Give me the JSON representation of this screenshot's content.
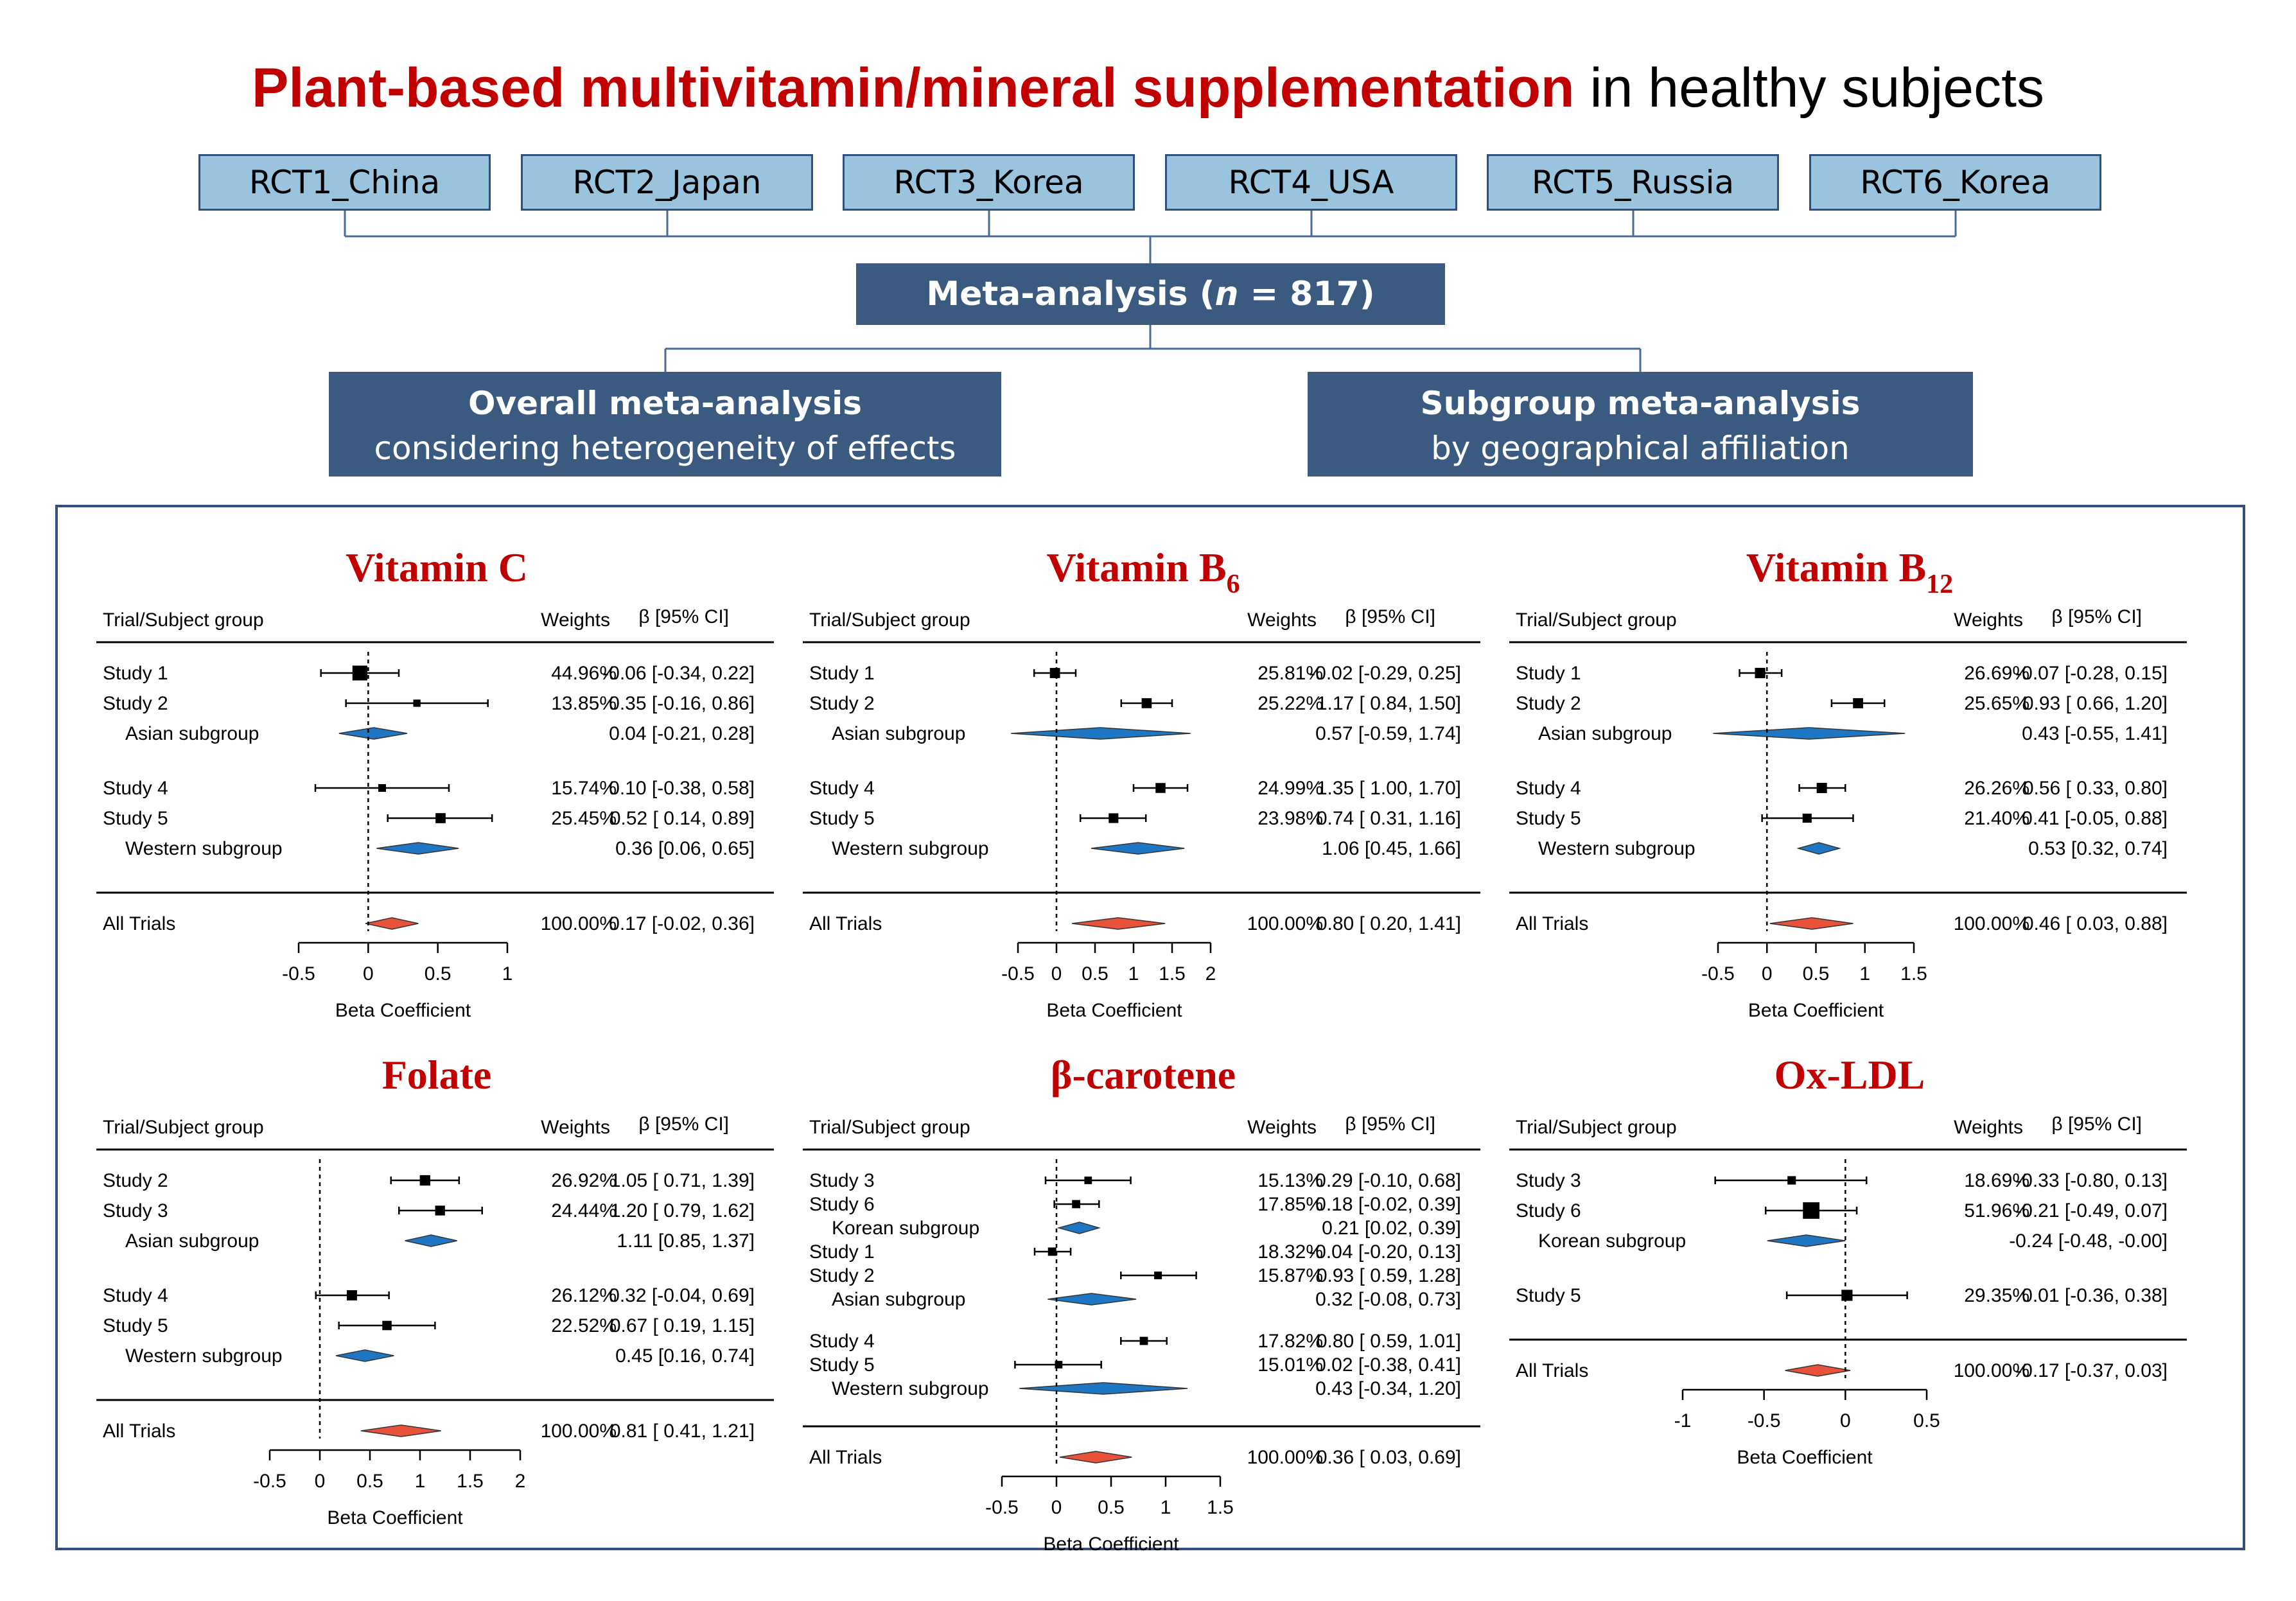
{
  "header": {
    "title_bold": "Plant-based multivitamin/mineral supplementation",
    "title_rest": " in healthy subjects"
  },
  "flow": {
    "rcts": [
      "RCT1_China",
      "RCT2_Japan",
      "RCT3_Korea",
      "RCT4_USA",
      "RCT5_Russia",
      "RCT6_Korea"
    ],
    "meta_prefix": "Meta-analysis (",
    "meta_n": "n",
    "meta_suffix": " = 817)",
    "overall_title": "Overall meta-analysis",
    "overall_sub": "considering heterogeneity of effects",
    "subgroup_title": "Subgroup meta-analysis",
    "subgroup_sub": "by geographical affiliation",
    "colors": {
      "rct_fill": "#9ac3de",
      "navy": "#3a5a80",
      "title_red": "#c00000"
    }
  },
  "common": {
    "col_trial": "Trial/Subject group",
    "col_weights": "Weights",
    "col_ci": "β [95% CI]",
    "xlabel": "Beta Coefficient",
    "colors": {
      "study": "#000000",
      "subgroup_diamond": "#1f77c4",
      "overall_diamond": "#e8513a"
    }
  },
  "chart_data": [
    {
      "type": "forest",
      "id": "vitc",
      "title_base": "Vitamin C",
      "title_sub": "",
      "xlim": [
        -0.5,
        1
      ],
      "ticks": [
        -0.5,
        0,
        0.5,
        1
      ],
      "tick_labels": [
        "-0.5",
        "0",
        "0.5",
        "1"
      ],
      "rows": [
        {
          "kind": "study",
          "label": "Study 1",
          "est": -0.06,
          "lo": -0.34,
          "hi": 0.22,
          "weight": "44.96%",
          "ci": "-0.06 [-0.34, 0.22]"
        },
        {
          "kind": "study",
          "label": "Study 2",
          "est": 0.35,
          "lo": -0.16,
          "hi": 0.86,
          "weight": "13.85%",
          "ci": "0.35 [-0.16, 0.86]"
        },
        {
          "kind": "subgroup",
          "label": "Asian subgroup",
          "est": 0.04,
          "lo": -0.21,
          "hi": 0.28,
          "weight": "",
          "ci": "0.04 [-0.21, 0.28]"
        },
        {
          "kind": "gap"
        },
        {
          "kind": "study",
          "label": "Study 4",
          "est": 0.1,
          "lo": -0.38,
          "hi": 0.58,
          "weight": "15.74%",
          "ci": "0.10 [-0.38, 0.58]"
        },
        {
          "kind": "study",
          "label": "Study 5",
          "est": 0.52,
          "lo": 0.14,
          "hi": 0.89,
          "weight": "25.45%",
          "ci": "0.52 [ 0.14, 0.89]"
        },
        {
          "kind": "subgroup",
          "label": "Western subgroup",
          "est": 0.36,
          "lo": 0.06,
          "hi": 0.65,
          "weight": "",
          "ci": "0.36 [0.06, 0.65]"
        },
        {
          "kind": "overall",
          "label": "All Trials",
          "est": 0.17,
          "lo": -0.02,
          "hi": 0.36,
          "weight": "100.00%",
          "ci": "0.17 [-0.02, 0.36]"
        }
      ]
    },
    {
      "type": "forest",
      "id": "vitb6",
      "title_base": "Vitamin B",
      "title_sub": "6",
      "xlim": [
        -0.5,
        2
      ],
      "ticks": [
        -0.5,
        0,
        0.5,
        1,
        1.5,
        2
      ],
      "tick_labels": [
        "-0.5",
        "0",
        "0.5",
        "1",
        "1.5",
        "2"
      ],
      "rows": [
        {
          "kind": "study",
          "label": "Study 1",
          "est": -0.02,
          "lo": -0.29,
          "hi": 0.25,
          "weight": "25.81%",
          "ci": "-0.02 [-0.29, 0.25]"
        },
        {
          "kind": "study",
          "label": "Study 2",
          "est": 1.17,
          "lo": 0.84,
          "hi": 1.5,
          "weight": "25.22%",
          "ci": "1.17 [ 0.84, 1.50]"
        },
        {
          "kind": "subgroup",
          "label": "Asian subgroup",
          "est": 0.57,
          "lo": -0.59,
          "hi": 1.74,
          "weight": "",
          "ci": "0.57 [-0.59, 1.74]"
        },
        {
          "kind": "gap"
        },
        {
          "kind": "study",
          "label": "Study 4",
          "est": 1.35,
          "lo": 1.0,
          "hi": 1.7,
          "weight": "24.99%",
          "ci": "1.35 [ 1.00, 1.70]"
        },
        {
          "kind": "study",
          "label": "Study 5",
          "est": 0.74,
          "lo": 0.31,
          "hi": 1.16,
          "weight": "23.98%",
          "ci": "0.74 [ 0.31, 1.16]"
        },
        {
          "kind": "subgroup",
          "label": "Western subgroup",
          "est": 1.06,
          "lo": 0.45,
          "hi": 1.66,
          "weight": "",
          "ci": "1.06 [0.45, 1.66]"
        },
        {
          "kind": "overall",
          "label": "All Trials",
          "est": 0.8,
          "lo": 0.2,
          "hi": 1.41,
          "weight": "100.00%",
          "ci": "0.80 [ 0.20, 1.41]"
        }
      ]
    },
    {
      "type": "forest",
      "id": "vitb12",
      "title_base": "Vitamin B",
      "title_sub": "12",
      "xlim": [
        -0.5,
        1.5
      ],
      "ticks": [
        -0.5,
        0,
        0.5,
        1,
        1.5
      ],
      "tick_labels": [
        "-0.5",
        "0",
        "0.5",
        "1",
        "1.5"
      ],
      "rows": [
        {
          "kind": "study",
          "label": "Study 1",
          "est": -0.07,
          "lo": -0.28,
          "hi": 0.15,
          "weight": "26.69%",
          "ci": "-0.07 [-0.28, 0.15]"
        },
        {
          "kind": "study",
          "label": "Study 2",
          "est": 0.93,
          "lo": 0.66,
          "hi": 1.2,
          "weight": "25.65%",
          "ci": "0.93 [ 0.66, 1.20]"
        },
        {
          "kind": "subgroup",
          "label": "Asian subgroup",
          "est": 0.43,
          "lo": -0.55,
          "hi": 1.41,
          "weight": "",
          "ci": "0.43 [-0.55, 1.41]"
        },
        {
          "kind": "gap"
        },
        {
          "kind": "study",
          "label": "Study 4",
          "est": 0.56,
          "lo": 0.33,
          "hi": 0.8,
          "weight": "26.26%",
          "ci": "0.56 [ 0.33, 0.80]"
        },
        {
          "kind": "study",
          "label": "Study 5",
          "est": 0.41,
          "lo": -0.05,
          "hi": 0.88,
          "weight": "21.40%",
          "ci": "0.41 [-0.05, 0.88]"
        },
        {
          "kind": "subgroup",
          "label": "Western subgroup",
          "est": 0.53,
          "lo": 0.32,
          "hi": 0.74,
          "weight": "",
          "ci": "0.53 [0.32, 0.74]"
        },
        {
          "kind": "overall",
          "label": "All Trials",
          "est": 0.46,
          "lo": 0.03,
          "hi": 0.88,
          "weight": "100.00%",
          "ci": "0.46 [ 0.03, 0.88]"
        }
      ]
    },
    {
      "type": "forest",
      "id": "folate",
      "title_base": "Folate",
      "title_sub": "",
      "xlim": [
        -0.5,
        2
      ],
      "ticks": [
        -0.5,
        0,
        0.5,
        1,
        1.5,
        2
      ],
      "tick_labels": [
        "-0.5",
        "0",
        "0.5",
        "1",
        "1.5",
        "2"
      ],
      "rows": [
        {
          "kind": "study",
          "label": "Study 2",
          "est": 1.05,
          "lo": 0.71,
          "hi": 1.39,
          "weight": "26.92%",
          "ci": "1.05 [ 0.71, 1.39]"
        },
        {
          "kind": "study",
          "label": "Study 3",
          "est": 1.2,
          "lo": 0.79,
          "hi": 1.62,
          "weight": "24.44%",
          "ci": "1.20 [ 0.79, 1.62]"
        },
        {
          "kind": "subgroup",
          "label": "Asian subgroup",
          "est": 1.11,
          "lo": 0.85,
          "hi": 1.37,
          "weight": "",
          "ci": "1.11 [0.85, 1.37]"
        },
        {
          "kind": "gap"
        },
        {
          "kind": "study",
          "label": "Study 4",
          "est": 0.32,
          "lo": -0.04,
          "hi": 0.69,
          "weight": "26.12%",
          "ci": "0.32 [-0.04, 0.69]"
        },
        {
          "kind": "study",
          "label": "Study 5",
          "est": 0.67,
          "lo": 0.19,
          "hi": 1.15,
          "weight": "22.52%",
          "ci": "0.67 [ 0.19, 1.15]"
        },
        {
          "kind": "subgroup",
          "label": "Western subgroup",
          "est": 0.45,
          "lo": 0.16,
          "hi": 0.74,
          "weight": "",
          "ci": "0.45 [0.16, 0.74]"
        },
        {
          "kind": "overall",
          "label": "All Trials",
          "est": 0.81,
          "lo": 0.41,
          "hi": 1.21,
          "weight": "100.00%",
          "ci": "0.81 [ 0.41, 1.21]"
        }
      ]
    },
    {
      "type": "forest",
      "id": "bcar",
      "title_base": "β-carotene",
      "title_sub": "",
      "xlim": [
        -0.5,
        1.5
      ],
      "ticks": [
        -0.5,
        0,
        0.5,
        1,
        1.5
      ],
      "tick_labels": [
        "-0.5",
        "0",
        "0.5",
        "1",
        "1.5"
      ],
      "rows": [
        {
          "kind": "study",
          "label": "Study 3",
          "est": 0.29,
          "lo": -0.1,
          "hi": 0.68,
          "weight": "15.13%",
          "ci": "0.29 [-0.10, 0.68]"
        },
        {
          "kind": "study",
          "label": "Study 6",
          "est": 0.18,
          "lo": -0.02,
          "hi": 0.39,
          "weight": "17.85%",
          "ci": "0.18 [-0.02, 0.39]"
        },
        {
          "kind": "subgroup",
          "label": "Korean subgroup",
          "est": 0.21,
          "lo": 0.02,
          "hi": 0.39,
          "weight": "",
          "ci": "0.21 [0.02, 0.39]"
        },
        {
          "kind": "study",
          "label": "Study 1",
          "est": -0.04,
          "lo": -0.2,
          "hi": 0.13,
          "weight": "18.32%",
          "ci": "-0.04 [-0.20, 0.13]"
        },
        {
          "kind": "study",
          "label": "Study 2",
          "est": 0.93,
          "lo": 0.59,
          "hi": 1.28,
          "weight": "15.87%",
          "ci": "0.93 [ 0.59, 1.28]"
        },
        {
          "kind": "subgroup",
          "label": "Asian subgroup",
          "est": 0.32,
          "lo": -0.08,
          "hi": 0.73,
          "weight": "",
          "ci": "0.32 [-0.08, 0.73]"
        },
        {
          "kind": "gap"
        },
        {
          "kind": "study",
          "label": "Study 4",
          "est": 0.8,
          "lo": 0.59,
          "hi": 1.01,
          "weight": "17.82%",
          "ci": "0.80 [ 0.59, 1.01]"
        },
        {
          "kind": "study",
          "label": "Study 5",
          "est": 0.02,
          "lo": -0.38,
          "hi": 0.41,
          "weight": "15.01%",
          "ci": "0.02 [-0.38, 0.41]"
        },
        {
          "kind": "subgroup",
          "label": "Western subgroup",
          "est": 0.43,
          "lo": -0.34,
          "hi": 1.2,
          "weight": "",
          "ci": "0.43 [-0.34, 1.20]"
        },
        {
          "kind": "overall",
          "label": "All Trials",
          "est": 0.36,
          "lo": 0.03,
          "hi": 0.69,
          "weight": "100.00%",
          "ci": "0.36 [ 0.03, 0.69]"
        }
      ]
    },
    {
      "type": "forest",
      "id": "oxldl",
      "title_base": "Ox-LDL",
      "title_sub": "",
      "xlim": [
        -1,
        0.5
      ],
      "ticks": [
        -1,
        -0.5,
        0,
        0.5
      ],
      "tick_labels": [
        "-1",
        "-0.5",
        "0",
        "0.5"
      ],
      "rows": [
        {
          "kind": "study",
          "label": "Study 3",
          "est": -0.33,
          "lo": -0.8,
          "hi": 0.13,
          "weight": "18.69%",
          "ci": "-0.33 [-0.80, 0.13]"
        },
        {
          "kind": "study",
          "label": "Study 6",
          "est": -0.21,
          "lo": -0.49,
          "hi": 0.07,
          "weight": "51.96%",
          "ci": "-0.21 [-0.49, 0.07]"
        },
        {
          "kind": "subgroup",
          "label": "Korean subgroup",
          "est": -0.24,
          "lo": -0.48,
          "hi": -0.0,
          "weight": "",
          "ci": "-0.24 [-0.48, -0.00]"
        },
        {
          "kind": "gap"
        },
        {
          "kind": "study",
          "label": "Study 5",
          "est": 0.01,
          "lo": -0.36,
          "hi": 0.38,
          "weight": "29.35%",
          "ci": "0.01 [-0.36, 0.38]"
        },
        {
          "kind": "overall",
          "label": "All Trials",
          "est": -0.17,
          "lo": -0.37,
          "hi": 0.03,
          "weight": "100.00%",
          "ci": "-0.17 [-0.37, 0.03]"
        }
      ]
    }
  ]
}
